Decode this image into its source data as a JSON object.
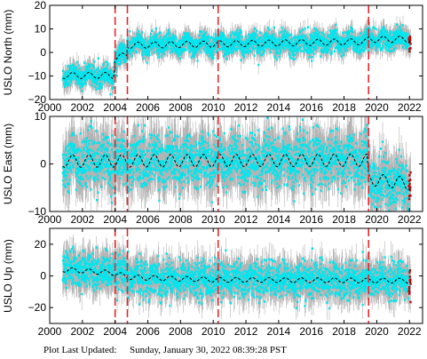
{
  "footer": {
    "label": "Plot Last Updated:",
    "value": "Sunday, January 30, 2022 08:39:28 PST"
  },
  "colors": {
    "observations": "#00e5ee",
    "error_bars": "#b4b4b4",
    "model": "#000000",
    "events": "#e8272a",
    "recent": "#cc0000"
  },
  "chart_data": [
    {
      "type": "scatter",
      "ylabel": "USLO North (mm)",
      "xlim": [
        2000,
        2022.8
      ],
      "ylim": [
        -20,
        20
      ],
      "xticks": [
        2000,
        2002,
        2004,
        2006,
        2008,
        2010,
        2012,
        2014,
        2016,
        2018,
        2020,
        2022
      ],
      "yticks": [
        -20,
        -10,
        0,
        10,
        20
      ],
      "x_tick_labels": [
        "2000",
        "2002",
        "2004",
        "2006",
        "2008",
        "2010",
        "2012",
        "2014",
        "2016",
        "2018",
        "2020",
        "2022"
      ],
      "y_tick_labels": [
        "−20",
        "−10",
        "0",
        "10",
        "20"
      ],
      "event_lines_x": [
        2004.0,
        2004.75,
        2010.3,
        2019.5
      ],
      "data_start": 2000.8,
      "data_end": 2022.08,
      "model_trend": [
        [
          2000.8,
          -9.8
        ],
        [
          2003.9,
          -9.8
        ],
        [
          2004.0,
          -2.5
        ],
        [
          2004.7,
          -1.0
        ],
        [
          2004.75,
          3.0
        ],
        [
          2010.3,
          3.6
        ],
        [
          2019.4,
          4.6
        ],
        [
          2019.5,
          5.5
        ],
        [
          2022.08,
          5.6
        ]
      ],
      "seasonal_amplitude": 1.3,
      "scatter": 2.2
    },
    {
      "type": "scatter",
      "ylabel": "USLO East (mm)",
      "xlim": [
        2000,
        2022.8
      ],
      "ylim": [
        -10,
        10
      ],
      "xticks": [
        2000,
        2002,
        2004,
        2006,
        2008,
        2010,
        2012,
        2014,
        2016,
        2018,
        2020,
        2022
      ],
      "yticks": [
        -10,
        0,
        10
      ],
      "x_tick_labels": [
        "2000",
        "2002",
        "2004",
        "2006",
        "2008",
        "2010",
        "2012",
        "2014",
        "2016",
        "2018",
        "2020",
        "2022"
      ],
      "y_tick_labels": [
        "−10",
        "0",
        "10"
      ],
      "event_lines_x": [
        2004.0,
        2004.75,
        2010.3,
        2019.5
      ],
      "data_start": 2000.8,
      "data_end": 2022.08,
      "model_trend": [
        [
          2000.8,
          0.6
        ],
        [
          2019.4,
          0.8
        ],
        [
          2019.5,
          -3.2
        ],
        [
          2022.08,
          -4.2
        ]
      ],
      "seasonal_amplitude": 1.3,
      "scatter": 2.6
    },
    {
      "type": "scatter",
      "ylabel": "USLO Up (mm)",
      "xlim": [
        2000,
        2022.8
      ],
      "ylim": [
        -30,
        30
      ],
      "xticks": [
        2000,
        2002,
        2004,
        2006,
        2008,
        2010,
        2012,
        2014,
        2016,
        2018,
        2020,
        2022
      ],
      "yticks": [
        -20,
        0,
        20
      ],
      "x_tick_labels": [
        "2000",
        "2002",
        "2004",
        "2006",
        "2008",
        "2010",
        "2012",
        "2014",
        "2016",
        "2018",
        "2020",
        "2022"
      ],
      "y_tick_labels": [
        "−20",
        "0",
        "20"
      ],
      "event_lines_x": [
        2004.0,
        2004.75,
        2010.3,
        2019.5
      ],
      "data_start": 2000.8,
      "data_end": 2022.08,
      "model_trend": [
        [
          2000.8,
          4.0
        ],
        [
          2004.0,
          1.8
        ],
        [
          2004.75,
          -0.8
        ],
        [
          2010.3,
          -2.5
        ],
        [
          2022.08,
          -3.0
        ]
      ],
      "seasonal_amplitude": 1.5,
      "scatter": 5.5
    }
  ]
}
